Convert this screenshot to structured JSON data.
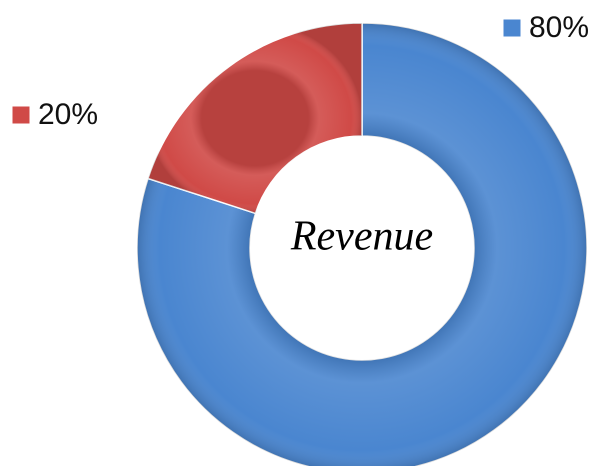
{
  "chart_data": {
    "type": "donut",
    "center_label": "Revenue",
    "values": [
      80,
      20
    ],
    "value_labels": [
      "80%",
      "20%"
    ],
    "colors": [
      "#4a86d0",
      "#d04a47"
    ]
  }
}
